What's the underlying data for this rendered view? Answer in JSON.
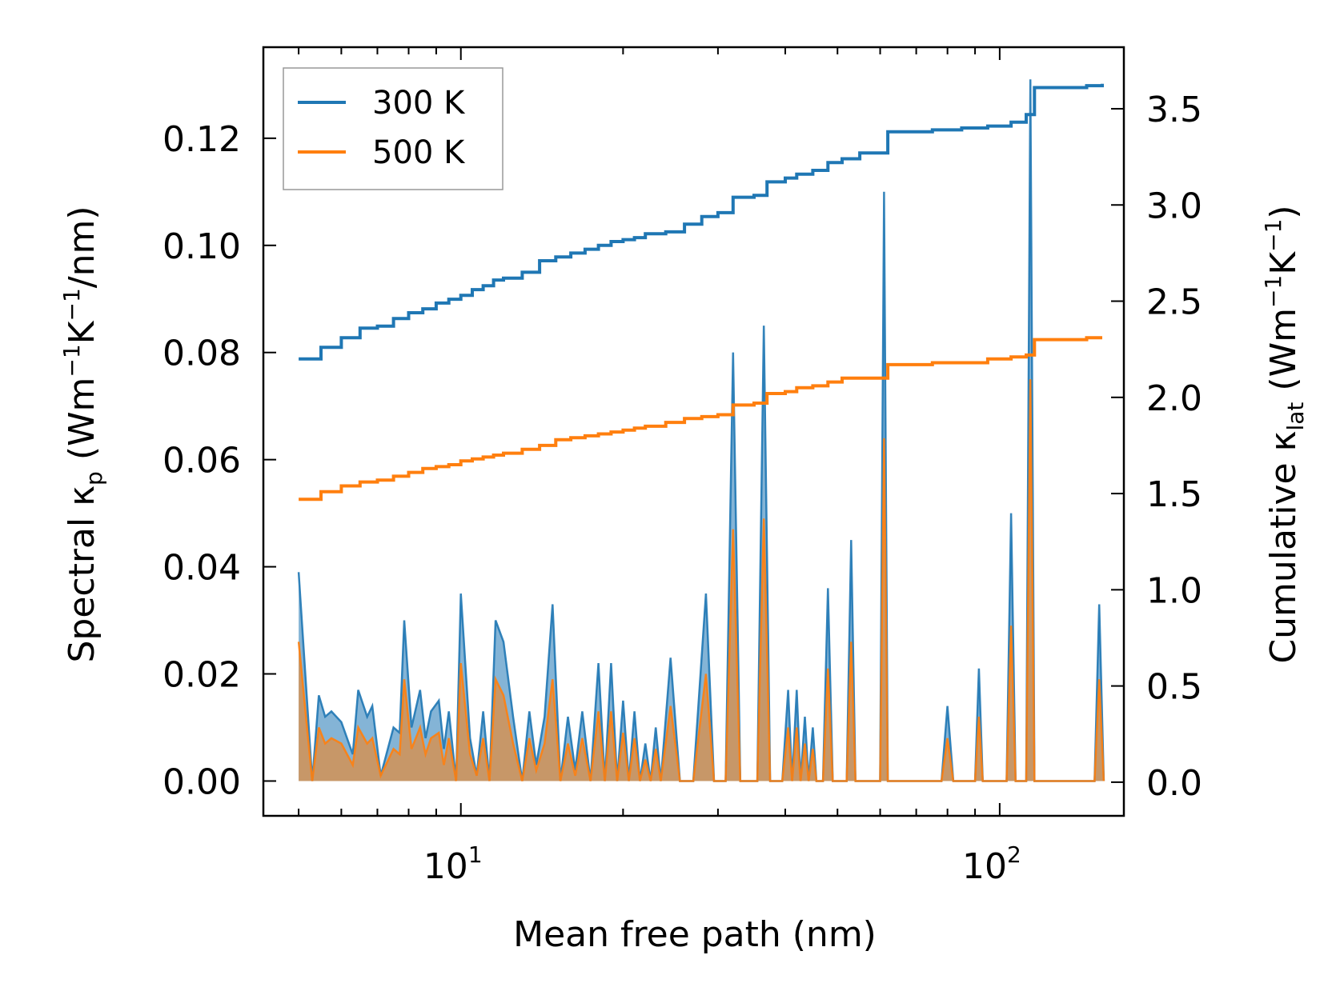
{
  "chart_data": {
    "type": "line",
    "xlabel": "Mean free path (nm)",
    "ylabel_left": {
      "prefix": "Spectral κ",
      "subscript": "p",
      "unit_a": "(Wm",
      "sup_a": "−1",
      "unit_b": "K",
      "sup_b": "−1",
      "unit_c": "/nm)"
    },
    "ylabel_right": {
      "prefix": "Cumulative κ",
      "subscript": "lat",
      "unit_a": "(Wm",
      "sup_a": "−1",
      "unit_b": "K",
      "sup_b": "−1",
      "unit_c": ")"
    },
    "x_scale": "log",
    "xlim": [
      4.3,
      170
    ],
    "ylim_left": [
      -0.0065,
      0.137
    ],
    "ylim_right": [
      -0.175,
      3.82
    ],
    "x_tick_labels": [
      {
        "value": 10,
        "base": "10",
        "exp": "1"
      },
      {
        "value": 100,
        "base": "10",
        "exp": "2"
      }
    ],
    "y_left_ticks": [
      0.0,
      0.02,
      0.04,
      0.06,
      0.08,
      0.1,
      0.12
    ],
    "y_left_tick_labels": [
      "0.00",
      "0.02",
      "0.04",
      "0.06",
      "0.08",
      "0.10",
      "0.12"
    ],
    "y_right_ticks": [
      0.0,
      0.5,
      1.0,
      1.5,
      2.0,
      2.5,
      3.0,
      3.5
    ],
    "y_right_tick_labels": [
      "0.0",
      "0.5",
      "1.0",
      "1.5",
      "2.0",
      "2.5",
      "3.0",
      "3.5"
    ],
    "legend": {
      "position": "upper-left",
      "entries": [
        {
          "label": "300 K",
          "color": "#1f77b4"
        },
        {
          "label": "500 K",
          "color": "#ff7f0e"
        }
      ]
    },
    "series": [
      {
        "name": "300 K",
        "color": "#1f77b4",
        "spectral_peaks": [
          [
            5.0,
            0.039
          ],
          [
            5.3,
            0.0
          ],
          [
            5.45,
            0.016
          ],
          [
            5.6,
            0.012
          ],
          [
            5.75,
            0.013
          ],
          [
            6.0,
            0.011
          ],
          [
            6.3,
            0.005
          ],
          [
            6.45,
            0.017
          ],
          [
            6.7,
            0.012
          ],
          [
            6.85,
            0.014
          ],
          [
            7.1,
            0.001
          ],
          [
            7.5,
            0.01
          ],
          [
            7.7,
            0.009
          ],
          [
            7.85,
            0.03
          ],
          [
            8.1,
            0.01
          ],
          [
            8.4,
            0.017
          ],
          [
            8.6,
            0.008
          ],
          [
            8.8,
            0.013
          ],
          [
            9.1,
            0.015
          ],
          [
            9.3,
            0.006
          ],
          [
            9.5,
            0.013
          ],
          [
            9.8,
            0.0
          ],
          [
            10.0,
            0.035
          ],
          [
            10.4,
            0.008
          ],
          [
            10.7,
            0.001
          ],
          [
            11.0,
            0.013
          ],
          [
            11.3,
            0.0
          ],
          [
            11.6,
            0.03
          ],
          [
            12.0,
            0.026
          ],
          [
            12.5,
            0.012
          ],
          [
            13.0,
            0.0
          ],
          [
            13.4,
            0.013
          ],
          [
            13.8,
            0.003
          ],
          [
            14.3,
            0.012
          ],
          [
            14.8,
            0.033
          ],
          [
            15.3,
            0.0
          ],
          [
            15.8,
            0.012
          ],
          [
            16.3,
            0.002
          ],
          [
            16.8,
            0.013
          ],
          [
            17.4,
            0.0
          ],
          [
            18.0,
            0.022
          ],
          [
            18.5,
            0.0
          ],
          [
            19.0,
            0.022
          ],
          [
            19.5,
            0.0
          ],
          [
            20.0,
            0.015
          ],
          [
            20.5,
            0.0
          ],
          [
            21.0,
            0.013
          ],
          [
            21.5,
            0.0
          ],
          [
            22.0,
            0.007
          ],
          [
            22.5,
            0.0
          ],
          [
            23.0,
            0.01
          ],
          [
            23.5,
            0.0
          ],
          [
            24.5,
            0.023
          ],
          [
            25.5,
            0.0
          ],
          [
            27.0,
            0.0
          ],
          [
            28.5,
            0.035
          ],
          [
            29.5,
            0.0
          ],
          [
            31.0,
            0.0
          ],
          [
            32.0,
            0.08
          ],
          [
            33.0,
            0.0
          ],
          [
            35.5,
            0.0
          ],
          [
            36.5,
            0.085
          ],
          [
            37.5,
            0.0
          ],
          [
            39.5,
            0.0
          ],
          [
            40.5,
            0.017
          ],
          [
            41.2,
            0.0
          ],
          [
            42.0,
            0.017
          ],
          [
            42.7,
            0.0
          ],
          [
            43.5,
            0.012
          ],
          [
            44.2,
            0.0
          ],
          [
            45.0,
            0.01
          ],
          [
            45.7,
            0.0
          ],
          [
            47.0,
            0.0
          ],
          [
            48.0,
            0.036
          ],
          [
            49.0,
            0.0
          ],
          [
            52.0,
            0.0
          ],
          [
            53.0,
            0.045
          ],
          [
            54.0,
            0.0
          ],
          [
            60.0,
            0.0
          ],
          [
            61.0,
            0.11
          ],
          [
            62.0,
            0.0
          ],
          [
            78.0,
            0.0
          ],
          [
            80.0,
            0.014
          ],
          [
            82.0,
            0.0
          ],
          [
            90.0,
            0.0
          ],
          [
            91.5,
            0.021
          ],
          [
            93.0,
            0.0
          ],
          [
            103.0,
            0.0
          ],
          [
            105.0,
            0.05
          ],
          [
            107.0,
            0.0
          ],
          [
            112.0,
            0.0
          ],
          [
            114.0,
            0.131
          ],
          [
            116.0,
            0.0
          ],
          [
            150.0,
            0.0
          ],
          [
            153.0,
            0.033
          ],
          [
            156.0,
            0.0
          ]
        ],
        "cumulative_points": [
          [
            5.0,
            2.2
          ],
          [
            5.5,
            2.26
          ],
          [
            6.0,
            2.31
          ],
          [
            6.5,
            2.36
          ],
          [
            7.0,
            2.37
          ],
          [
            7.5,
            2.41
          ],
          [
            8.0,
            2.44
          ],
          [
            8.5,
            2.46
          ],
          [
            9.0,
            2.49
          ],
          [
            9.5,
            2.51
          ],
          [
            10.0,
            2.53
          ],
          [
            10.5,
            2.56
          ],
          [
            11.0,
            2.58
          ],
          [
            11.5,
            2.61
          ],
          [
            12.0,
            2.62
          ],
          [
            13.0,
            2.65
          ],
          [
            14.0,
            2.71
          ],
          [
            15.0,
            2.73
          ],
          [
            16.0,
            2.75
          ],
          [
            17.0,
            2.77
          ],
          [
            18.0,
            2.79
          ],
          [
            19.0,
            2.81
          ],
          [
            20.0,
            2.82
          ],
          [
            21.0,
            2.83
          ],
          [
            22.0,
            2.85
          ],
          [
            24.0,
            2.86
          ],
          [
            26.0,
            2.9
          ],
          [
            28.0,
            2.94
          ],
          [
            30.0,
            2.96
          ],
          [
            32.0,
            3.04
          ],
          [
            35.0,
            3.05
          ],
          [
            37.0,
            3.12
          ],
          [
            40.0,
            3.14
          ],
          [
            42.0,
            3.16
          ],
          [
            45.0,
            3.18
          ],
          [
            48.0,
            3.22
          ],
          [
            51.0,
            3.24
          ],
          [
            55.0,
            3.27
          ],
          [
            60.0,
            3.27
          ],
          [
            62.0,
            3.38
          ],
          [
            75.0,
            3.39
          ],
          [
            85.0,
            3.4
          ],
          [
            95.0,
            3.41
          ],
          [
            105.0,
            3.43
          ],
          [
            112.0,
            3.47
          ],
          [
            116.0,
            3.61
          ],
          [
            145.0,
            3.62
          ],
          [
            155.0,
            3.63
          ]
        ]
      },
      {
        "name": "500 K",
        "color": "#ff7f0e",
        "spectral_peaks": [
          [
            5.0,
            0.026
          ],
          [
            5.3,
            0.0
          ],
          [
            5.45,
            0.01
          ],
          [
            5.6,
            0.007
          ],
          [
            5.75,
            0.008
          ],
          [
            6.0,
            0.007
          ],
          [
            6.3,
            0.003
          ],
          [
            6.45,
            0.01
          ],
          [
            6.7,
            0.007
          ],
          [
            6.85,
            0.008
          ],
          [
            7.1,
            0.001
          ],
          [
            7.5,
            0.006
          ],
          [
            7.7,
            0.005
          ],
          [
            7.85,
            0.019
          ],
          [
            8.1,
            0.006
          ],
          [
            8.4,
            0.01
          ],
          [
            8.6,
            0.005
          ],
          [
            8.8,
            0.008
          ],
          [
            9.1,
            0.009
          ],
          [
            9.3,
            0.003
          ],
          [
            9.5,
            0.008
          ],
          [
            9.8,
            0.0
          ],
          [
            10.0,
            0.022
          ],
          [
            10.4,
            0.005
          ],
          [
            10.7,
            0.001
          ],
          [
            11.0,
            0.008
          ],
          [
            11.3,
            0.0
          ],
          [
            11.6,
            0.019
          ],
          [
            12.0,
            0.016
          ],
          [
            12.5,
            0.007
          ],
          [
            13.0,
            0.0
          ],
          [
            13.4,
            0.008
          ],
          [
            13.8,
            0.002
          ],
          [
            14.3,
            0.007
          ],
          [
            14.8,
            0.019
          ],
          [
            15.3,
            0.0
          ],
          [
            15.8,
            0.007
          ],
          [
            16.3,
            0.001
          ],
          [
            16.8,
            0.008
          ],
          [
            17.4,
            0.0
          ],
          [
            18.0,
            0.013
          ],
          [
            18.5,
            0.0
          ],
          [
            19.0,
            0.013
          ],
          [
            19.5,
            0.0
          ],
          [
            20.0,
            0.009
          ],
          [
            20.5,
            0.0
          ],
          [
            21.0,
            0.008
          ],
          [
            21.5,
            0.0
          ],
          [
            22.0,
            0.004
          ],
          [
            22.5,
            0.0
          ],
          [
            23.0,
            0.006
          ],
          [
            23.5,
            0.0
          ],
          [
            24.5,
            0.014
          ],
          [
            25.5,
            0.0
          ],
          [
            27.0,
            0.0
          ],
          [
            28.5,
            0.02
          ],
          [
            29.5,
            0.0
          ],
          [
            31.0,
            0.0
          ],
          [
            32.0,
            0.047
          ],
          [
            33.0,
            0.0
          ],
          [
            35.5,
            0.0
          ],
          [
            36.5,
            0.049
          ],
          [
            37.5,
            0.0
          ],
          [
            39.5,
            0.0
          ],
          [
            40.5,
            0.01
          ],
          [
            41.2,
            0.0
          ],
          [
            42.0,
            0.01
          ],
          [
            42.7,
            0.0
          ],
          [
            43.5,
            0.007
          ],
          [
            44.2,
            0.0
          ],
          [
            45.0,
            0.006
          ],
          [
            45.7,
            0.0
          ],
          [
            47.0,
            0.0
          ],
          [
            48.0,
            0.021
          ],
          [
            49.0,
            0.0
          ],
          [
            52.0,
            0.0
          ],
          [
            53.0,
            0.026
          ],
          [
            54.0,
            0.0
          ],
          [
            60.0,
            0.0
          ],
          [
            61.0,
            0.064
          ],
          [
            62.0,
            0.0
          ],
          [
            78.0,
            0.0
          ],
          [
            80.0,
            0.008
          ],
          [
            82.0,
            0.0
          ],
          [
            90.0,
            0.0
          ],
          [
            91.5,
            0.012
          ],
          [
            93.0,
            0.0
          ],
          [
            103.0,
            0.0
          ],
          [
            105.0,
            0.029
          ],
          [
            107.0,
            0.0
          ],
          [
            112.0,
            0.0
          ],
          [
            114.0,
            0.075
          ],
          [
            116.0,
            0.0
          ],
          [
            150.0,
            0.0
          ],
          [
            153.0,
            0.019
          ],
          [
            156.0,
            0.0
          ]
        ],
        "cumulative_points": [
          [
            5.0,
            1.47
          ],
          [
            5.5,
            1.51
          ],
          [
            6.0,
            1.54
          ],
          [
            6.5,
            1.56
          ],
          [
            7.0,
            1.57
          ],
          [
            7.5,
            1.59
          ],
          [
            8.0,
            1.61
          ],
          [
            8.5,
            1.63
          ],
          [
            9.0,
            1.64
          ],
          [
            9.5,
            1.65
          ],
          [
            10.0,
            1.67
          ],
          [
            10.5,
            1.68
          ],
          [
            11.0,
            1.69
          ],
          [
            11.5,
            1.7
          ],
          [
            12.0,
            1.71
          ],
          [
            13.0,
            1.73
          ],
          [
            14.0,
            1.75
          ],
          [
            15.0,
            1.78
          ],
          [
            16.0,
            1.79
          ],
          [
            17.0,
            1.8
          ],
          [
            18.0,
            1.81
          ],
          [
            19.0,
            1.82
          ],
          [
            20.0,
            1.83
          ],
          [
            21.0,
            1.84
          ],
          [
            22.0,
            1.85
          ],
          [
            24.0,
            1.87
          ],
          [
            26.0,
            1.89
          ],
          [
            28.0,
            1.9
          ],
          [
            30.0,
            1.91
          ],
          [
            32.0,
            1.96
          ],
          [
            35.0,
            1.97
          ],
          [
            37.0,
            2.02
          ],
          [
            40.0,
            2.03
          ],
          [
            42.0,
            2.05
          ],
          [
            45.0,
            2.06
          ],
          [
            48.0,
            2.08
          ],
          [
            51.0,
            2.1
          ],
          [
            55.0,
            2.1
          ],
          [
            60.0,
            2.1
          ],
          [
            62.0,
            2.17
          ],
          [
            75.0,
            2.18
          ],
          [
            85.0,
            2.18
          ],
          [
            95.0,
            2.2
          ],
          [
            105.0,
            2.21
          ],
          [
            112.0,
            2.22
          ],
          [
            116.0,
            2.3
          ],
          [
            145.0,
            2.31
          ],
          [
            155.0,
            2.31
          ]
        ]
      }
    ]
  }
}
